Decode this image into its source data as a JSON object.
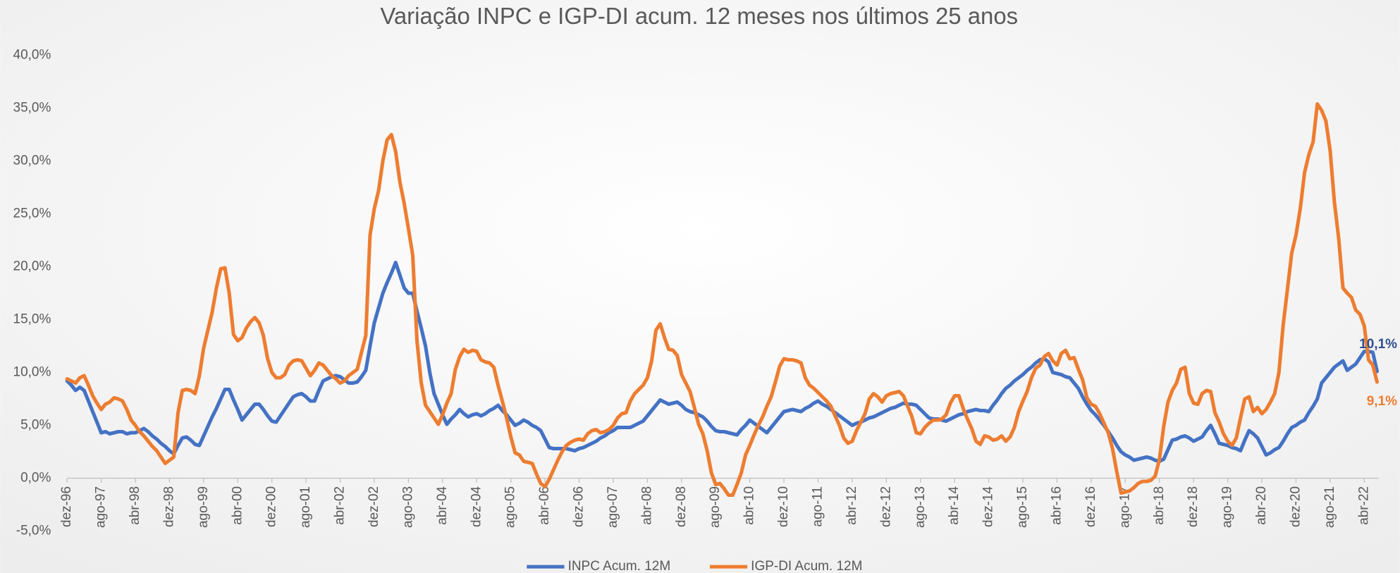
{
  "chart_data": {
    "type": "line",
    "title": "Variação INPC e IGP-DI acum. 12 meses nos últimos 25 anos",
    "categories": [
      "dez-96",
      null,
      null,
      null,
      null,
      null,
      null,
      null,
      "ago-97",
      null,
      null,
      null,
      null,
      null,
      null,
      null,
      "abr-98",
      null,
      null,
      null,
      null,
      null,
      null,
      null,
      "dez-98",
      null,
      null,
      null,
      null,
      null,
      null,
      null,
      "ago-99",
      null,
      null,
      null,
      null,
      null,
      null,
      null,
      "abr-00",
      null,
      null,
      null,
      null,
      null,
      null,
      null,
      "dez-00",
      null,
      null,
      null,
      null,
      null,
      null,
      null,
      "ago-01",
      null,
      null,
      null,
      null,
      null,
      null,
      null,
      "abr-02",
      null,
      null,
      null,
      null,
      null,
      null,
      null,
      "dez-02",
      null,
      null,
      null,
      null,
      null,
      null,
      null,
      "ago-03",
      null,
      null,
      null,
      null,
      null,
      null,
      null,
      "abr-04",
      null,
      null,
      null,
      null,
      null,
      null,
      null,
      "dez-04",
      null,
      null,
      null,
      null,
      null,
      null,
      null,
      "ago-05",
      null,
      null,
      null,
      null,
      null,
      null,
      null,
      "abr-06",
      null,
      null,
      null,
      null,
      null,
      null,
      null,
      "dez-06",
      null,
      null,
      null,
      null,
      null,
      null,
      null,
      "ago-07",
      null,
      null,
      null,
      null,
      null,
      null,
      null,
      "abr-08",
      null,
      null,
      null,
      null,
      null,
      null,
      null,
      "dez-08",
      null,
      null,
      null,
      null,
      null,
      null,
      null,
      "ago-09",
      null,
      null,
      null,
      null,
      null,
      null,
      null,
      "abr-10",
      null,
      null,
      null,
      null,
      null,
      null,
      null,
      "dez-10",
      null,
      null,
      null,
      null,
      null,
      null,
      null,
      "ago-11",
      null,
      null,
      null,
      null,
      null,
      null,
      null,
      "abr-12",
      null,
      null,
      null,
      null,
      null,
      null,
      null,
      "dez-12",
      null,
      null,
      null,
      null,
      null,
      null,
      null,
      "ago-13",
      null,
      null,
      null,
      null,
      null,
      null,
      null,
      "abr-14",
      null,
      null,
      null,
      null,
      null,
      null,
      null,
      "dez-14",
      null,
      null,
      null,
      null,
      null,
      null,
      null,
      "ago-15",
      null,
      null,
      null,
      null,
      null,
      null,
      null,
      "abr-16",
      null,
      null,
      null,
      null,
      null,
      null,
      null,
      "dez-16",
      null,
      null,
      null,
      null,
      null,
      null,
      null,
      "ago-17",
      null,
      null,
      null,
      null,
      null,
      null,
      null,
      "abr-18",
      null,
      null,
      null,
      null,
      null,
      null,
      null,
      "dez-18",
      null,
      null,
      null,
      null,
      null,
      null,
      null,
      "ago-19",
      null,
      null,
      null,
      null,
      null,
      null,
      null,
      "abr-20",
      null,
      null,
      null,
      null,
      null,
      null,
      null,
      "dez-20",
      null,
      null,
      null,
      null,
      null,
      null,
      null,
      "ago-21",
      null,
      null,
      null,
      null,
      null,
      null,
      null,
      "abr-22",
      null,
      null,
      null
    ],
    "series": [
      {
        "name": "INPC Acum. 12M",
        "color": "#4472c4",
        "label_color": "#2f4f8f",
        "values": [
          9.2,
          8.8,
          8.3,
          8.6,
          8.3,
          7.3,
          6.3,
          5.3,
          4.3,
          4.4,
          4.2,
          4.3,
          4.4,
          4.4,
          4.2,
          4.3,
          4.3,
          4.5,
          4.7,
          4.4,
          4.0,
          3.7,
          3.3,
          3.0,
          2.6,
          2.3,
          3.1,
          3.8,
          3.9,
          3.6,
          3.2,
          3.1,
          4.0,
          4.9,
          5.8,
          6.6,
          7.5,
          8.4,
          8.4,
          7.4,
          6.5,
          5.5,
          6.0,
          6.5,
          7.0,
          7.0,
          6.5,
          5.9,
          5.4,
          5.3,
          5.9,
          6.5,
          7.1,
          7.7,
          7.9,
          8.0,
          7.7,
          7.3,
          7.3,
          8.3,
          9.2,
          9.4,
          9.6,
          9.7,
          9.6,
          9.3,
          9.0,
          9.0,
          9.1,
          9.6,
          10.2,
          12.5,
          14.7,
          16.1,
          17.5,
          18.5,
          19.4,
          20.4,
          19.2,
          18.0,
          17.5,
          17.5,
          15.8,
          14.2,
          12.5,
          10.0,
          8.0,
          7.0,
          6.0,
          5.1,
          5.6,
          6.0,
          6.5,
          6.1,
          5.8,
          6.0,
          6.1,
          5.9,
          6.1,
          6.4,
          6.6,
          6.9,
          6.4,
          6.0,
          5.5,
          5.0,
          5.2,
          5.5,
          5.3,
          5.0,
          4.8,
          4.5,
          3.7,
          2.9,
          2.8,
          2.8,
          2.8,
          2.8,
          2.7,
          2.6,
          2.8,
          2.9,
          3.1,
          3.3,
          3.5,
          3.8,
          4.0,
          4.3,
          4.5,
          4.8,
          4.8,
          4.8,
          4.8,
          5.0,
          5.2,
          5.4,
          5.9,
          6.4,
          6.9,
          7.4,
          7.2,
          7.0,
          7.1,
          7.2,
          6.9,
          6.5,
          6.3,
          6.2,
          6.0,
          5.8,
          5.4,
          4.9,
          4.5,
          4.4,
          4.4,
          4.3,
          4.2,
          4.1,
          4.6,
          5.0,
          5.5,
          5.2,
          4.9,
          4.6,
          4.3,
          4.8,
          5.3,
          5.8,
          6.3,
          6.4,
          6.5,
          6.4,
          6.3,
          6.6,
          6.8,
          7.1,
          7.3,
          7.0,
          6.8,
          6.5,
          6.2,
          5.9,
          5.6,
          5.3,
          5.0,
          5.2,
          5.3,
          5.5,
          5.7,
          5.8,
          6.0,
          6.2,
          6.4,
          6.6,
          6.7,
          6.9,
          7.1,
          7.0,
          7.0,
          6.9,
          6.5,
          6.1,
          5.7,
          5.6,
          5.6,
          5.5,
          5.4,
          5.6,
          5.8,
          6.0,
          6.1,
          6.3,
          6.4,
          6.5,
          6.4,
          6.4,
          6.3,
          6.9,
          7.4,
          8.0,
          8.5,
          8.8,
          9.2,
          9.5,
          9.8,
          10.2,
          10.5,
          10.9,
          11.2,
          11.3,
          11.0,
          10.0,
          9.9,
          9.8,
          9.6,
          9.5,
          9.0,
          8.5,
          7.7,
          7.0,
          6.4,
          6.0,
          5.5,
          5.0,
          4.4,
          3.8,
          3.1,
          2.5,
          2.2,
          2.0,
          1.7,
          1.8,
          1.9,
          2.0,
          1.9,
          1.7,
          1.6,
          1.8,
          2.7,
          3.6,
          3.7,
          3.9,
          4.0,
          3.8,
          3.5,
          3.7,
          3.9,
          4.5,
          5.0,
          4.2,
          3.3,
          3.2,
          3.1,
          2.9,
          2.8,
          2.6,
          3.6,
          4.5,
          4.2,
          3.8,
          3.0,
          2.2,
          2.4,
          2.7,
          2.9,
          3.5,
          4.2,
          4.8,
          5.0,
          5.3,
          5.5,
          6.2,
          6.8,
          7.5,
          9.0,
          9.5,
          10.0,
          10.5,
          10.8,
          11.1,
          10.2,
          10.5,
          10.8,
          11.4,
          12.0,
          12.0,
          11.9,
          10.1
        ],
        "value_labels": {
          "307": "10,1%"
        }
      },
      {
        "name": "IGP-DI Acum. 12M",
        "color": "#ed7d31",
        "label_color": "#ed7d31",
        "values": [
          9.4,
          9.2,
          9.0,
          9.5,
          9.7,
          8.8,
          7.8,
          7.1,
          6.5,
          7.0,
          7.2,
          7.6,
          7.5,
          7.3,
          6.5,
          5.5,
          5.0,
          4.4,
          4.0,
          3.5,
          3.0,
          2.6,
          2.0,
          1.4,
          1.7,
          2.0,
          6.2,
          8.3,
          8.4,
          8.3,
          8.0,
          9.7,
          12.3,
          14.0,
          15.7,
          18.0,
          19.8,
          19.9,
          17.5,
          13.6,
          13.0,
          13.3,
          14.2,
          14.8,
          15.2,
          14.7,
          13.5,
          11.3,
          10.0,
          9.5,
          9.5,
          9.8,
          10.7,
          11.1,
          11.2,
          11.1,
          10.4,
          9.7,
          10.2,
          10.9,
          10.7,
          10.2,
          9.7,
          9.4,
          9.0,
          9.2,
          9.7,
          10.0,
          10.3,
          11.9,
          13.5,
          23.0,
          25.5,
          27.2,
          30.0,
          32.0,
          32.5,
          30.9,
          28.0,
          26.0,
          23.6,
          21.1,
          13.0,
          9.0,
          6.9,
          6.3,
          5.7,
          5.1,
          6.0,
          7.1,
          8.0,
          10.3,
          11.5,
          12.2,
          11.9,
          12.1,
          12.0,
          11.2,
          11.0,
          10.9,
          10.5,
          8.8,
          7.3,
          5.7,
          3.9,
          2.4,
          2.2,
          1.6,
          1.5,
          1.4,
          0.4,
          -0.5,
          -0.8,
          -0.1,
          0.8,
          1.7,
          2.5,
          3.1,
          3.4,
          3.6,
          3.7,
          3.6,
          4.2,
          4.5,
          4.6,
          4.3,
          4.4,
          4.6,
          5.0,
          5.7,
          6.1,
          6.2,
          7.3,
          8.0,
          8.4,
          8.8,
          9.5,
          11.1,
          14.0,
          14.6,
          13.3,
          12.2,
          12.1,
          11.6,
          9.8,
          9.0,
          8.2,
          6.7,
          5.1,
          4.2,
          2.6,
          0.5,
          -0.6,
          -0.5,
          -1.0,
          -1.6,
          -1.6,
          -0.6,
          0.5,
          2.2,
          3.1,
          4.1,
          5.0,
          5.8,
          6.8,
          7.7,
          9.1,
          10.6,
          11.3,
          11.2,
          11.2,
          11.1,
          10.9,
          9.5,
          8.8,
          8.5,
          8.1,
          7.7,
          7.3,
          6.8,
          5.9,
          5.0,
          3.8,
          3.3,
          3.5,
          4.5,
          5.3,
          6.1,
          7.5,
          8.0,
          7.7,
          7.2,
          7.8,
          8.0,
          8.1,
          8.2,
          7.8,
          6.8,
          5.8,
          4.3,
          4.2,
          4.8,
          5.2,
          5.5,
          5.5,
          5.6,
          6.0,
          7.1,
          7.8,
          7.8,
          6.6,
          5.6,
          4.7,
          3.5,
          3.2,
          4.0,
          3.9,
          3.6,
          3.7,
          4.0,
          3.5,
          3.9,
          4.8,
          6.3,
          7.3,
          8.2,
          9.5,
          10.4,
          10.7,
          11.5,
          11.8,
          11.1,
          10.7,
          11.8,
          12.1,
          11.3,
          11.4,
          10.3,
          9.3,
          7.6,
          7.0,
          6.8,
          6.1,
          5.2,
          4.3,
          2.8,
          0.6,
          -1.4,
          -1.3,
          -1.2,
          -0.9,
          -0.5,
          -0.3,
          -0.3,
          -0.2,
          0.2,
          1.8,
          4.9,
          7.2,
          8.3,
          9.0,
          10.3,
          10.5,
          8.0,
          7.1,
          7.0,
          8.0,
          8.3,
          8.2,
          6.2,
          5.3,
          4.2,
          3.5,
          3.1,
          3.8,
          5.7,
          7.5,
          7.7,
          6.3,
          6.7,
          6.1,
          6.5,
          7.2,
          8.0,
          10.0,
          14.5,
          17.9,
          21.3,
          23.0,
          25.5,
          28.9,
          30.6,
          31.8,
          35.4,
          34.8,
          33.8,
          31.0,
          26.1,
          22.7,
          18.0,
          17.5,
          17.1,
          15.9,
          15.5,
          14.4,
          11.2,
          10.7,
          9.1
        ],
        "value_labels": {
          "307": "9,1%"
        }
      }
    ],
    "ylim": [
      -5,
      40
    ],
    "yticks": [
      {
        "value": -5,
        "label": "-5,0%"
      },
      {
        "value": 0,
        "label": "0,0%"
      },
      {
        "value": 5,
        "label": "5,0%"
      },
      {
        "value": 10,
        "label": "10,0%"
      },
      {
        "value": 15,
        "label": "15,0%"
      },
      {
        "value": 20,
        "label": "20,0%"
      },
      {
        "value": 25,
        "label": "25,0%"
      },
      {
        "value": 30,
        "label": "30,0%"
      },
      {
        "value": 35,
        "label": "35,0%"
      },
      {
        "value": 40,
        "label": "40,0%"
      }
    ],
    "grid": false,
    "legend": "bottom"
  }
}
